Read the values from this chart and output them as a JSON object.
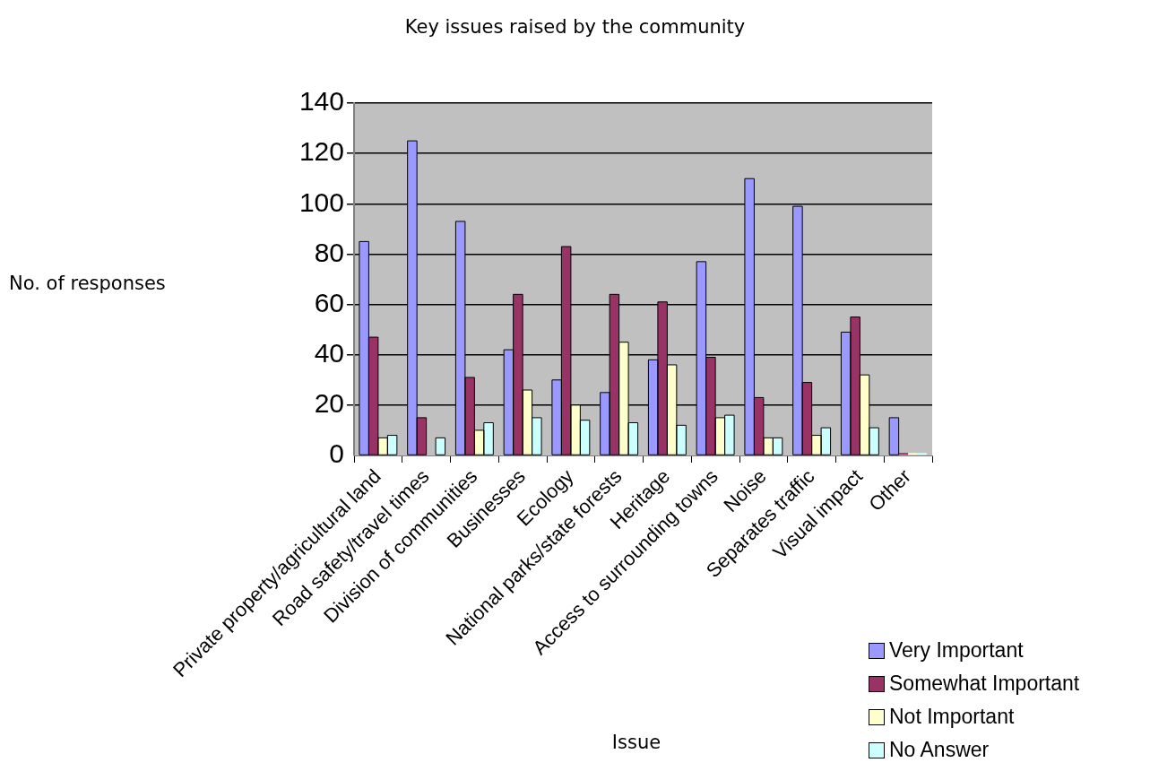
{
  "chart_data": {
    "type": "bar",
    "title": "Key issues raised by the community",
    "xlabel": "Issue",
    "ylabel": "No. of responses",
    "categories": [
      "Private property/agricultural land",
      "Road safety/travel times",
      "Division of communities",
      "Businesses",
      "Ecology",
      "National parks/state forests",
      "Heritage",
      "Access to surrounding towns",
      "Noise",
      "Separates traffic",
      "Visual impact",
      "Other"
    ],
    "series": [
      {
        "name": "Very Important",
        "color": "#9999ff",
        "values": [
          85,
          125,
          93,
          42,
          30,
          25,
          38,
          77,
          110,
          99,
          49,
          15
        ]
      },
      {
        "name": "Somewhat Important",
        "color": "#993366",
        "values": [
          47,
          15,
          31,
          64,
          83,
          64,
          61,
          39,
          23,
          29,
          55,
          1
        ]
      },
      {
        "name": "Not Important",
        "color": "#ffffcc",
        "values": [
          7,
          0,
          10,
          26,
          20,
          45,
          36,
          15,
          7,
          8,
          32,
          1
        ]
      },
      {
        "name": "No Answer",
        "color": "#ccffff",
        "values": [
          8,
          7,
          13,
          15,
          14,
          13,
          12,
          16,
          7,
          11,
          11,
          1
        ]
      }
    ],
    "ylim": [
      0,
      140
    ],
    "yticks": [
      0,
      20,
      40,
      60,
      80,
      100,
      120,
      140
    ],
    "grid": "y",
    "legend": "bottom right"
  }
}
